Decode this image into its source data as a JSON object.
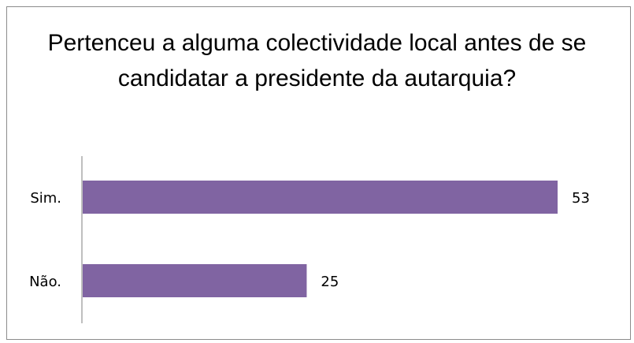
{
  "chart_data": {
    "type": "bar",
    "orientation": "horizontal",
    "title": "Pertenceu a alguma colectividade local antes de se candidatar a presidente da autarquia?",
    "categories": [
      "Sim.",
      "Não."
    ],
    "values": [
      53,
      25
    ],
    "xlim": [
      0,
      53
    ],
    "grid": false,
    "legend": "none",
    "bar_color": "#8064A2"
  }
}
